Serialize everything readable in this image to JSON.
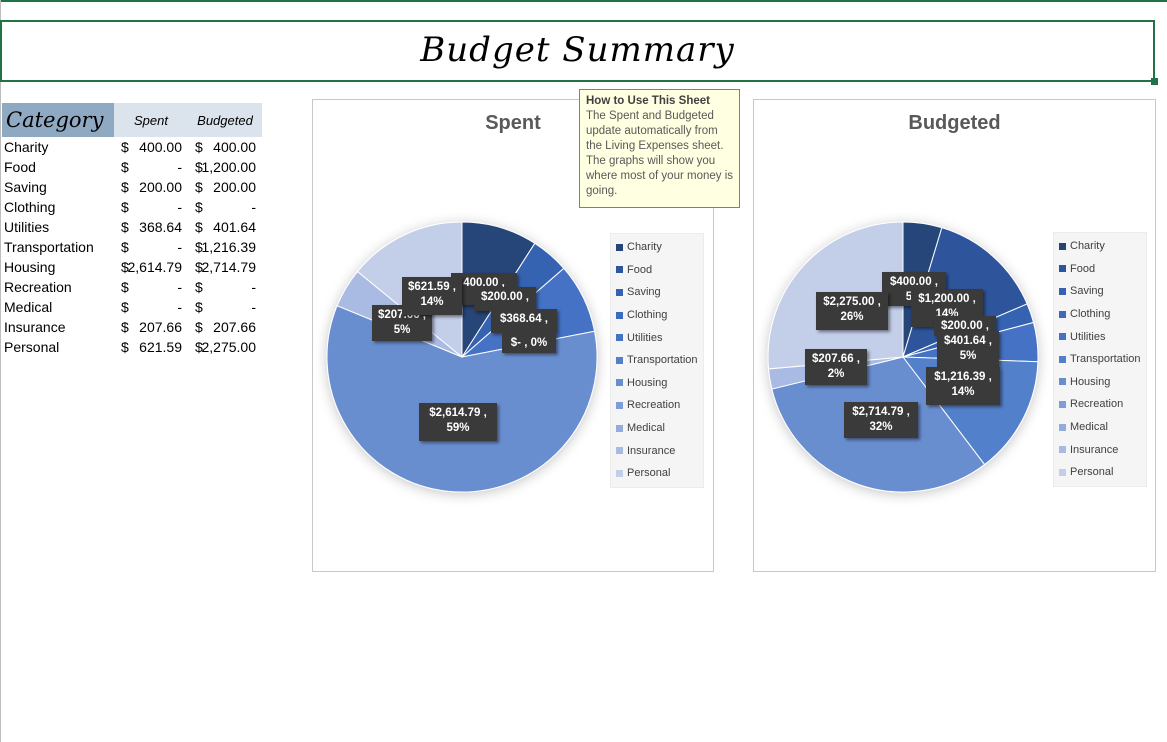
{
  "title": "Budget Summary",
  "table": {
    "headers": {
      "category": "Category",
      "spent": "Spent",
      "budgeted": "Budgeted"
    },
    "currency": "$",
    "rows": [
      {
        "category": "Charity",
        "spent": "400.00",
        "budgeted": "400.00"
      },
      {
        "category": "Food",
        "spent": "-",
        "budgeted": "1,200.00"
      },
      {
        "category": "Saving",
        "spent": "200.00",
        "budgeted": "200.00"
      },
      {
        "category": "Clothing",
        "spent": "-",
        "budgeted": "-"
      },
      {
        "category": "Utilities",
        "spent": "368.64",
        "budgeted": "401.64"
      },
      {
        "category": "Transportation",
        "spent": "-",
        "budgeted": "1,216.39"
      },
      {
        "category": "Housing",
        "spent": "2,614.79",
        "budgeted": "2,714.79"
      },
      {
        "category": "Recreation",
        "spent": "-",
        "budgeted": "-"
      },
      {
        "category": "Medical",
        "spent": "-",
        "budgeted": "-"
      },
      {
        "category": "Insurance",
        "spent": "207.66",
        "budgeted": "207.66"
      },
      {
        "category": "Personal",
        "spent": "621.59",
        "budgeted": "2,275.00"
      }
    ]
  },
  "comment": {
    "title": "How to Use This Sheet",
    "body": "The Spent and Budgeted update automatically from the Living Expenses sheet. The graphs will show you where most of your money is going."
  },
  "legend": [
    "Charity",
    "Food",
    "Saving",
    "Clothing",
    "Utilities",
    "Transportation",
    "Housing",
    "Recreation",
    "Medical",
    "Insurance",
    "Personal"
  ],
  "colors": [
    "#264478",
    "#2d559c",
    "#3563b1",
    "#3b6bbf",
    "#4472c4",
    "#5380ca",
    "#698ed0",
    "#7f9dd6",
    "#94acdc",
    "#aabbe3",
    "#c3cee9"
  ],
  "chart_data": [
    {
      "type": "pie",
      "title": "Spent",
      "categories": [
        "Charity",
        "Food",
        "Saving",
        "Clothing",
        "Utilities",
        "Transportation",
        "Housing",
        "Recreation",
        "Medical",
        "Insurance",
        "Personal"
      ],
      "values": [
        400.0,
        0,
        200.0,
        0,
        368.64,
        0,
        2614.79,
        0,
        0,
        207.66,
        621.59
      ],
      "legend_position": "right",
      "data_labels": [
        {
          "text": "400.00 ,",
          "text2": ""
        },
        {
          "text": "$200.00 ,",
          "text2": ""
        },
        {
          "text": "$368.64 ,",
          "text2": ""
        },
        {
          "text": "$- , 0%",
          "text2": ""
        },
        {
          "text": "$2,614.79 ,",
          "text2": "59%"
        },
        {
          "text": "$207.66 ,",
          "text2": "5%"
        },
        {
          "text": "$621.59 ,",
          "text2": "14%"
        }
      ]
    },
    {
      "type": "pie",
      "title": "Budgeted",
      "categories": [
        "Charity",
        "Food",
        "Saving",
        "Clothing",
        "Utilities",
        "Transportation",
        "Housing",
        "Recreation",
        "Medical",
        "Insurance",
        "Personal"
      ],
      "values": [
        400.0,
        1200.0,
        200.0,
        0,
        401.64,
        1216.39,
        2714.79,
        0,
        0,
        207.66,
        2275.0
      ],
      "legend_position": "right",
      "data_labels": [
        {
          "text": "$400.00 ,",
          "text2": "5%"
        },
        {
          "text": "$1,200.00 ,",
          "text2": "14%"
        },
        {
          "text": "$200.00 ,",
          "text2": ""
        },
        {
          "text": "$401.64 ,",
          "text2": "5%"
        },
        {
          "text": "$1,216.39 ,",
          "text2": "14%"
        },
        {
          "text": "$2,714.79 ,",
          "text2": "32%"
        },
        {
          "text": "$207.66 ,",
          "text2": "2%"
        },
        {
          "text": "$2,275.00 ,",
          "text2": "26%"
        }
      ]
    }
  ]
}
